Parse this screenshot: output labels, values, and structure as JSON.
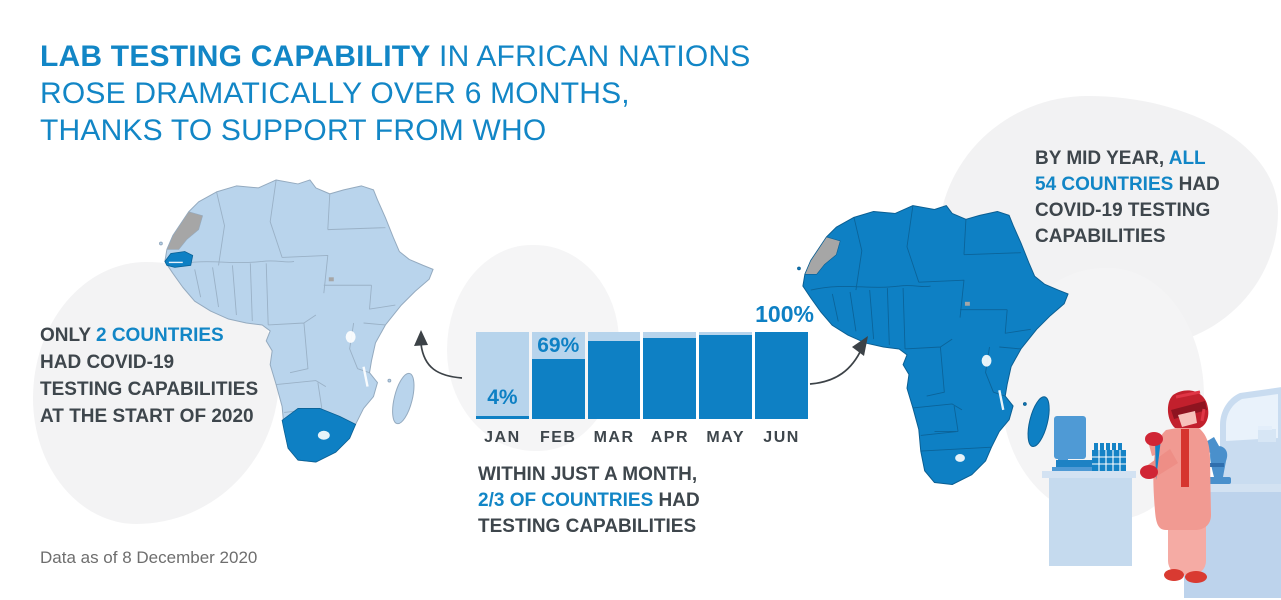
{
  "title": {
    "bold_part": "LAB TESTING CAPABILITY",
    "line1_rest": " IN AFRICAN NATIONS",
    "line2": "ROSE DRAMATICALLY OVER 6 MONTHS,",
    "line3": "THANKS TO SUPPORT FROM WHO"
  },
  "left_note": {
    "seg1": "ONLY ",
    "seg2_highlight": "2 COUNTRIES",
    "line2": "HAD COVID-19",
    "line3": "TESTING CAPABILITIES",
    "line4": "AT THE START OF 2020"
  },
  "mid_note": {
    "line1": "WITHIN JUST A MONTH,",
    "seg1_highlight": "2/3 OF COUNTRIES",
    "seg2": " HAD",
    "line3": "TESTING CAPABILITIES"
  },
  "right_note": {
    "seg1": "BY MID YEAR, ",
    "seg2_highlight": "ALL",
    "seg3_highlight": "54 COUNTRIES",
    "seg4": " HAD",
    "line3": "COVID-19 TESTING",
    "line4": "CAPABILITIES"
  },
  "footer_text": "Data as of 8 December 2020",
  "chart_data": {
    "type": "bar",
    "title": "Share of African countries with COVID-19 lab testing capability, Jan–Jun 2020",
    "categories": [
      "JAN",
      "FEB",
      "MAR",
      "APR",
      "MAY",
      "JUN"
    ],
    "values": [
      4,
      69,
      90,
      93,
      97,
      100
    ],
    "unit": "%",
    "ylim": [
      0,
      100
    ],
    "grid": false,
    "legend": "none",
    "shown_labels": {
      "JAN": "4%",
      "FEB": "69%",
      "JUN": "100%"
    },
    "label_positions": {
      "JAN": "pos-bottom",
      "FEB": "pos-top",
      "JUN": "pos-above"
    },
    "bar_color": "#0e80c4",
    "bar_bg_color": "#b7d4ec"
  },
  "maps": {
    "left": {
      "name": "africa-start-2020",
      "highlighted_countries": [
        "Senegal",
        "South Africa"
      ],
      "land_color": "#b9d4ec",
      "highlight_color": "#0e80c4"
    },
    "right": {
      "name": "africa-mid-2020",
      "highlighted_countries": "all",
      "land_color": "#0e80c4"
    }
  },
  "icons": {
    "arrow_left": "curved-arrow-to-left-map",
    "arrow_right": "curved-arrow-to-right-map",
    "lab_scene": "lab-technician-with-pipette-benches-microscope"
  },
  "colors": {
    "accent_blue": "#1286c6",
    "dark_bar_blue": "#0e80c4",
    "light_bar_blue": "#b7d4ec",
    "text_dark": "#3e464c",
    "footer_gray": "#6e6e6e",
    "blob_gray": "#f3f3f4",
    "western_sahara_gray": "#a6a6a6",
    "coat_pink": "#f19a92",
    "hood_red": "#c2202d"
  }
}
